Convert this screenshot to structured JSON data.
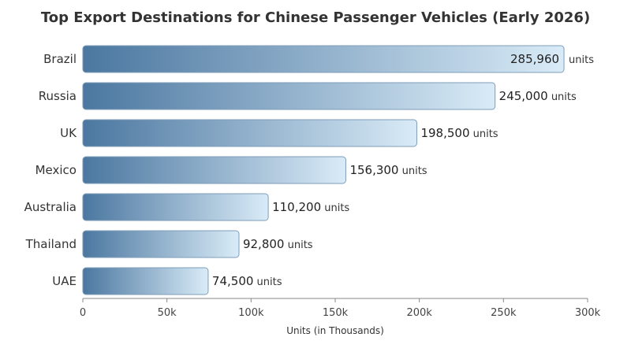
{
  "chart_data": {
    "type": "bar",
    "orientation": "horizontal",
    "title": "Top Export Destinations for Chinese Passenger Vehicles (Early 2026)",
    "categories": [
      "Brazil",
      "Russia",
      "UK",
      "Mexico",
      "Australia",
      "Thailand",
      "UAE"
    ],
    "values": [
      285960,
      245000,
      198500,
      156300,
      110200,
      92800,
      74500
    ],
    "value_labels": [
      "285,960",
      "245,000",
      "198,500",
      "156,300",
      "110,200",
      "92,800",
      "74,500"
    ],
    "value_unit": "units",
    "xlabel": "Units (in Thousands)",
    "ylabel": "",
    "xlim": [
      0,
      300000
    ],
    "x_ticks": [
      0,
      50000,
      100000,
      150000,
      200000,
      250000,
      300000
    ],
    "x_tick_labels": [
      "0",
      "50k",
      "100k",
      "150k",
      "200k",
      "250k",
      "300k"
    ],
    "grid": false,
    "colors": {
      "bar_start": "#4b77a0",
      "bar_end": "#d9ebf7",
      "bar_stroke": "#7f9db8",
      "axis": "#888888"
    }
  }
}
